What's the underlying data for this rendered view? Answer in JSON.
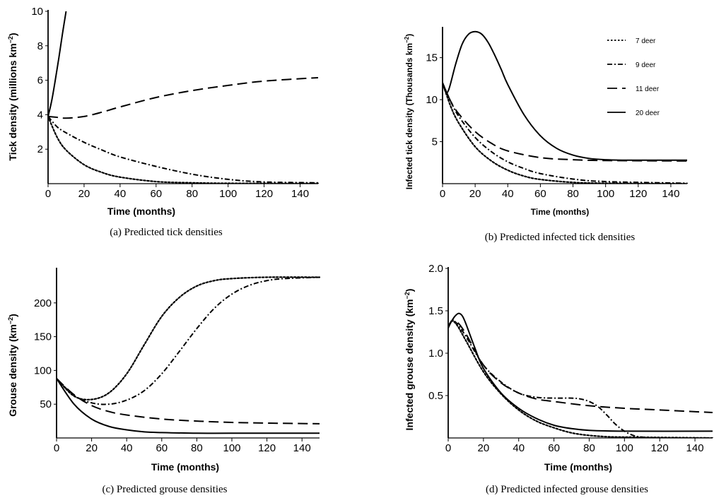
{
  "chart_data": [
    {
      "id": "a",
      "type": "line",
      "caption": "(a) Predicted tick densities",
      "xlabel": "Time (months)",
      "ylabel": "Tick density (millions km",
      "ylabel_sup": "−2",
      "ylabel_tail": ")",
      "xlim": [
        0,
        150
      ],
      "ylim": [
        0,
        10
      ],
      "xticks": [
        0,
        20,
        40,
        60,
        80,
        100,
        120,
        140
      ],
      "yticks": [
        2,
        4,
        6,
        8,
        10
      ],
      "legend": false,
      "grid": false,
      "series": [
        {
          "dash": "solid",
          "x": [
            0,
            2,
            4,
            6,
            8,
            10
          ],
          "y": [
            3.9,
            4.8,
            6.0,
            7.3,
            8.7,
            10.0
          ]
        },
        {
          "dash": "long-dash",
          "x": [
            0,
            5,
            10,
            20,
            30,
            40,
            60,
            80,
            100,
            120,
            150
          ],
          "y": [
            3.9,
            3.85,
            3.8,
            3.9,
            4.15,
            4.45,
            5.0,
            5.4,
            5.7,
            5.95,
            6.15
          ]
        },
        {
          "dash": "dot-dash",
          "x": [
            0,
            5,
            10,
            20,
            30,
            40,
            60,
            80,
            100,
            120,
            150
          ],
          "y": [
            3.9,
            3.3,
            2.95,
            2.4,
            1.95,
            1.55,
            1.0,
            0.55,
            0.25,
            0.1,
            0.05
          ]
        },
        {
          "dash": "dotted",
          "x": [
            0,
            5,
            10,
            20,
            30,
            40,
            60,
            80,
            100,
            150
          ],
          "y": [
            3.9,
            2.7,
            1.95,
            1.1,
            0.65,
            0.38,
            0.12,
            0.05,
            0.02,
            0.01
          ]
        }
      ]
    },
    {
      "id": "b",
      "type": "line",
      "caption": "(b) Predicted infected tick densities",
      "xlabel": "Time (months)",
      "ylabel": "Infected tick density (Thousands km",
      "ylabel_sup": "−2",
      "ylabel_tail": ")",
      "xlim": [
        0,
        150
      ],
      "ylim": [
        0,
        18.5
      ],
      "xticks": [
        0,
        20,
        40,
        60,
        80,
        100,
        120,
        140
      ],
      "yticks": [
        5,
        10,
        15
      ],
      "legend": true,
      "legend_position": "top-right",
      "grid": false,
      "series": [
        {
          "name": "7 deer",
          "dash": "dotted",
          "x": [
            0,
            5,
            10,
            20,
            30,
            40,
            50,
            60,
            80,
            100,
            150
          ],
          "y": [
            12.0,
            9.2,
            7.2,
            4.4,
            2.7,
            1.6,
            0.9,
            0.5,
            0.15,
            0.05,
            0.01
          ]
        },
        {
          "name": "9 deer",
          "dash": "dot-dash",
          "x": [
            0,
            5,
            10,
            20,
            30,
            40,
            50,
            60,
            80,
            100,
            150
          ],
          "y": [
            12.0,
            9.8,
            8.0,
            5.5,
            3.8,
            2.6,
            1.8,
            1.2,
            0.55,
            0.25,
            0.05
          ]
        },
        {
          "name": "11 deer",
          "dash": "long-dash",
          "x": [
            0,
            5,
            10,
            20,
            30,
            40,
            60,
            80,
            100,
            150
          ],
          "y": [
            12.0,
            9.8,
            8.3,
            6.2,
            4.8,
            3.9,
            3.1,
            2.85,
            2.75,
            2.7
          ]
        },
        {
          "name": "20 deer",
          "dash": "solid",
          "x": [
            0,
            2,
            4,
            8,
            12,
            16,
            20,
            24,
            28,
            32,
            36,
            40,
            50,
            60,
            70,
            80,
            90,
            100,
            110,
            120,
            150
          ],
          "y": [
            12.0,
            10.9,
            11.3,
            14.2,
            16.6,
            17.8,
            18.1,
            17.8,
            16.8,
            15.3,
            13.6,
            11.8,
            8.2,
            5.7,
            4.2,
            3.4,
            3.0,
            2.85,
            2.8,
            2.8,
            2.8
          ]
        }
      ]
    },
    {
      "id": "c",
      "type": "line",
      "caption": "(c) Predicted grouse densities",
      "xlabel": "Time (months)",
      "ylabel": "Grouse density (km",
      "ylabel_sup": "−2",
      "ylabel_tail": ")",
      "xlim": [
        0,
        150
      ],
      "ylim": [
        0,
        250
      ],
      "xticks": [
        0,
        20,
        40,
        60,
        80,
        100,
        120,
        140
      ],
      "yticks": [
        50,
        100,
        150,
        200
      ],
      "legend": false,
      "grid": false,
      "series": [
        {
          "dash": "dotted",
          "x": [
            0,
            10,
            20,
            30,
            40,
            50,
            60,
            70,
            80,
            90,
            100,
            120,
            150
          ],
          "y": [
            88,
            62,
            57,
            67,
            95,
            138,
            180,
            208,
            225,
            233,
            236,
            238,
            238
          ]
        },
        {
          "dash": "dot-dash",
          "x": [
            0,
            10,
            20,
            30,
            40,
            50,
            60,
            70,
            80,
            90,
            100,
            110,
            120,
            130,
            150
          ],
          "y": [
            88,
            63,
            52,
            50,
            56,
            70,
            95,
            128,
            162,
            192,
            213,
            226,
            233,
            236,
            238
          ]
        },
        {
          "dash": "long-dash",
          "x": [
            0,
            10,
            20,
            30,
            40,
            60,
            80,
            100,
            120,
            150
          ],
          "y": [
            88,
            64,
            48,
            39,
            34,
            28,
            25,
            23,
            22,
            21
          ]
        },
        {
          "dash": "solid",
          "x": [
            0,
            10,
            20,
            30,
            40,
            50,
            60,
            80,
            100,
            150
          ],
          "y": [
            88,
            50,
            28,
            17,
            12,
            9,
            8,
            7,
            7,
            7
          ]
        }
      ]
    },
    {
      "id": "d",
      "type": "line",
      "caption": "(d) Predicted infected grouse densities",
      "xlabel": "Time (months)",
      "ylabel": "Infected grouse density (km",
      "ylabel_sup": "−2",
      "ylabel_tail": ")",
      "xlim": [
        0,
        150
      ],
      "ylim": [
        0,
        2.0
      ],
      "xticks": [
        0,
        20,
        40,
        60,
        80,
        100,
        120,
        140
      ],
      "yticks": [
        0.5,
        1.0,
        1.5,
        2.0
      ],
      "ytick_labels": [
        "0.5",
        "1.0",
        "1.5",
        "2.0"
      ],
      "legend": false,
      "grid": false,
      "series": [
        {
          "dash": "dotted",
          "x": [
            0,
            2,
            5,
            10,
            20,
            30,
            40,
            50,
            60,
            70,
            80,
            90,
            100,
            150
          ],
          "y": [
            1.3,
            1.38,
            1.33,
            1.15,
            0.78,
            0.52,
            0.33,
            0.2,
            0.12,
            0.06,
            0.03,
            0.015,
            0.01,
            0.0
          ]
        },
        {
          "dash": "dot-dash",
          "x": [
            0,
            2,
            5,
            10,
            20,
            30,
            40,
            50,
            60,
            70,
            75,
            80,
            85,
            90,
            95,
            100,
            105,
            110,
            120,
            150
          ],
          "y": [
            1.3,
            1.38,
            1.35,
            1.2,
            0.86,
            0.66,
            0.53,
            0.48,
            0.47,
            0.47,
            0.46,
            0.43,
            0.37,
            0.27,
            0.16,
            0.08,
            0.03,
            0.01,
            0.0,
            0.0
          ]
        },
        {
          "dash": "long-dash",
          "x": [
            0,
            2,
            5,
            10,
            20,
            30,
            40,
            50,
            60,
            80,
            100,
            120,
            150
          ],
          "y": [
            1.3,
            1.38,
            1.37,
            1.23,
            0.86,
            0.65,
            0.53,
            0.46,
            0.43,
            0.38,
            0.35,
            0.33,
            0.3
          ]
        },
        {
          "dash": "solid",
          "x": [
            0,
            2,
            4,
            6,
            8,
            10,
            15,
            20,
            30,
            40,
            50,
            60,
            70,
            80,
            100,
            150
          ],
          "y": [
            1.3,
            1.38,
            1.44,
            1.47,
            1.44,
            1.35,
            1.07,
            0.82,
            0.53,
            0.35,
            0.23,
            0.15,
            0.11,
            0.09,
            0.08,
            0.08
          ]
        }
      ]
    }
  ]
}
